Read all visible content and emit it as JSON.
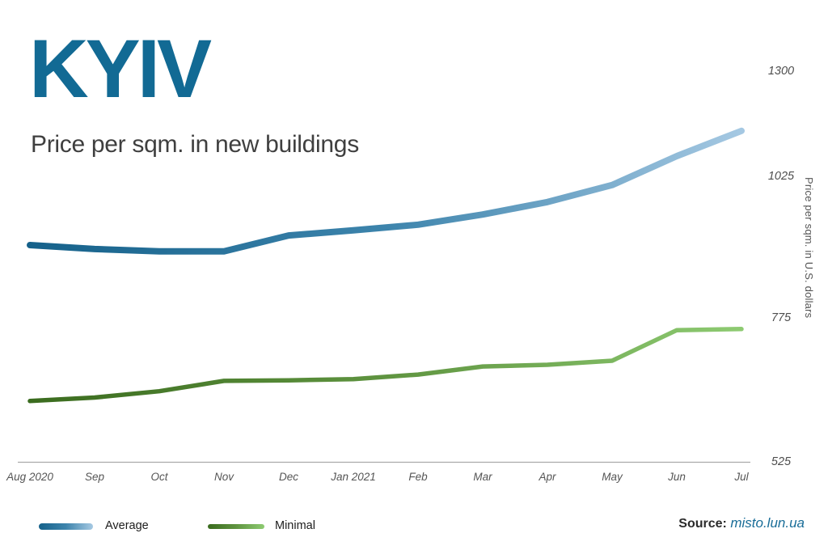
{
  "header": {
    "title": "KYIV",
    "subtitle": "Price per sqm. in new buildings"
  },
  "chart_data": {
    "type": "line",
    "title": "KYIV — Price per sqm. in new buildings",
    "categories": [
      "Aug 2020",
      "Sep",
      "Oct",
      "Nov",
      "Dec",
      "Jan 2021",
      "Feb",
      "Mar",
      "Apr",
      "May",
      "Jun",
      "Jul"
    ],
    "series": [
      {
        "name": "Average",
        "values": [
          905,
          898,
          894,
          894,
          922,
          931,
          941,
          959,
          981,
          1011,
          1080,
          1146
        ],
        "gradient": [
          "#15618a",
          "#3d84ac",
          "#a6c9e3"
        ],
        "stroke_width": 8
      },
      {
        "name": "Minimal",
        "values": [
          632,
          638,
          649,
          667,
          668,
          670,
          678,
          692,
          695,
          702,
          755,
          757
        ],
        "gradient": [
          "#3a6b1e",
          "#5f9440",
          "#8ecb72"
        ],
        "stroke_width": 5.5
      }
    ],
    "xlabel": "",
    "ylabel": "Price per sqm. in U.S. dollars",
    "yticks": [
      525,
      775,
      1025,
      1300
    ],
    "ylim": [
      525,
      1300
    ],
    "grid": false,
    "legend_position": "bottom-left"
  },
  "legend": {
    "items": [
      {
        "label": "Average"
      },
      {
        "label": "Minimal"
      }
    ]
  },
  "source": {
    "label": "Source:",
    "link_text": "misto.lun.ua"
  },
  "colors": {
    "title": "#126a94",
    "subtitle": "#3f3f3f",
    "axis_text": "#555555",
    "axis_line": "#aaaaaa",
    "link": "#196d98",
    "average_dark": "#15618a",
    "average_light": "#a6c9e3",
    "minimal_dark": "#3a6b1e",
    "minimal_light": "#8ecb72"
  }
}
